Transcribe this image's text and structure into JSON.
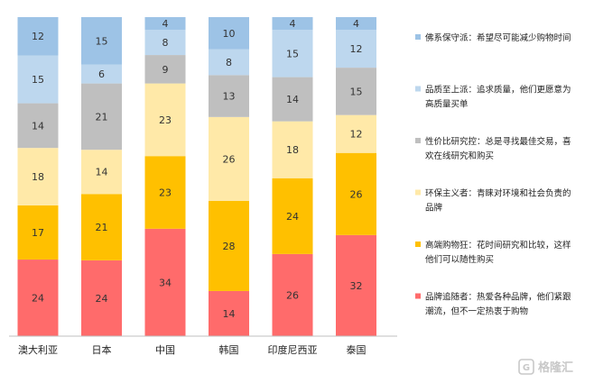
{
  "chart_data": {
    "type": "bar",
    "stacked": true,
    "percent_stacked": true,
    "categories": [
      "澳大利亚",
      "日本",
      "中国",
      "韩国",
      "印度尼西亚",
      "泰国"
    ],
    "series": [
      {
        "key": "brand",
        "color": "#FF6B6B",
        "values": [
          24,
          24,
          34,
          14,
          26,
          32
        ]
      },
      {
        "key": "luxury",
        "color": "#FFC000",
        "values": [
          17,
          21,
          23,
          28,
          24,
          26
        ]
      },
      {
        "key": "eco",
        "color": "#FFE9A8",
        "values": [
          18,
          14,
          23,
          26,
          18,
          12
        ]
      },
      {
        "key": "value",
        "color": "#BFBFBF",
        "values": [
          14,
          21,
          9,
          13,
          14,
          15
        ]
      },
      {
        "key": "quality",
        "color": "#BDD7EE",
        "values": [
          15,
          6,
          8,
          8,
          15,
          12
        ]
      },
      {
        "key": "conservative",
        "color": "#9DC3E6",
        "values": [
          12,
          15,
          4,
          10,
          4,
          4
        ]
      }
    ],
    "legend_position": "right",
    "legend": [
      {
        "color": "#9DC3E6",
        "lines": [
          "佛系保守派：希望尽可能减少购物时间"
        ]
      },
      {
        "color": "#BDD7EE",
        "lines": [
          "品质至上派：追求质量，他们更愿意为",
          "高质量买单"
        ]
      },
      {
        "color": "#BFBFBF",
        "lines": [
          "性价比研究控：总是寻找最佳交易，喜",
          "欢在线研究和购买"
        ]
      },
      {
        "color": "#FFE9A8",
        "lines": [
          "环保主义者：青睐对环境和社会负责的",
          "品牌"
        ]
      },
      {
        "color": "#FFC000",
        "lines": [
          "高端购物狂：花时间研究和比较，这样",
          "他们可以随性购买"
        ]
      },
      {
        "color": "#FF6B6B",
        "lines": [
          "品牌追随者：热爱各种品牌，他们紧跟",
          "潮流，但不一定热衷于购物"
        ]
      }
    ],
    "grid": false
  },
  "watermark": {
    "text": "格隆汇"
  }
}
